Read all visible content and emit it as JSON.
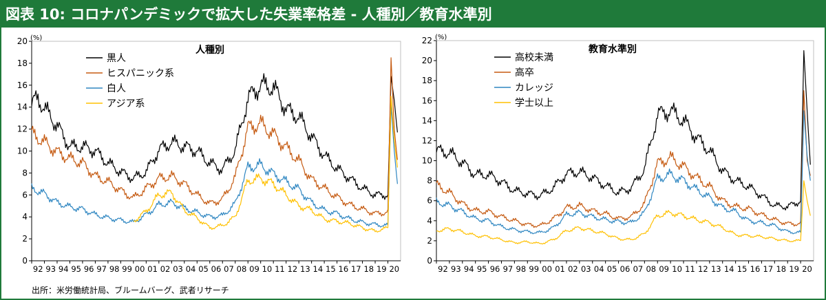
{
  "title": "図表 10: コロナパンデミックで拡大した失業率格差 - 人種別／教育水準別",
  "source": "出所：米労働統計局、ブルームバーグ、武者リサーチ",
  "chart_data": [
    {
      "type": "line",
      "title": "人種別",
      "unit": "(%)",
      "ylim": [
        0,
        20
      ],
      "yticks": [
        0,
        2,
        4,
        6,
        8,
        10,
        12,
        14,
        16,
        18,
        20
      ],
      "xlabels": [
        "92",
        "93",
        "94",
        "95",
        "96",
        "97",
        "98",
        "99",
        "00",
        "01",
        "02",
        "03",
        "04",
        "05",
        "06",
        "07",
        "08",
        "09",
        "10",
        "11",
        "12",
        "13",
        "14",
        "15",
        "16",
        "17",
        "18",
        "19",
        "20"
      ],
      "legend_position": "top-left",
      "x_start_year": 1992,
      "series": [
        {
          "name": "黒人",
          "color": "#000000",
          "anchors": [
            [
              1992.0,
              14.3
            ],
            [
              1992.5,
              14.8
            ],
            [
              1993.0,
              13.9
            ],
            [
              1994.0,
              12.3
            ],
            [
              1995.0,
              10.4
            ],
            [
              1996.0,
              10.4
            ],
            [
              1997.0,
              10.0
            ],
            [
              1998.0,
              8.9
            ],
            [
              1999.0,
              8.1
            ],
            [
              2000.0,
              7.5
            ],
            [
              2001.0,
              8.1
            ],
            [
              2002.0,
              10.1
            ],
            [
              2003.0,
              10.8
            ],
            [
              2004.0,
              10.4
            ],
            [
              2005.0,
              10.0
            ],
            [
              2006.0,
              8.9
            ],
            [
              2007.0,
              8.3
            ],
            [
              2008.0,
              10.1
            ],
            [
              2009.0,
              14.8
            ],
            [
              2010.0,
              16.0
            ],
            [
              2011.0,
              15.8
            ],
            [
              2012.0,
              13.8
            ],
            [
              2013.0,
              13.1
            ],
            [
              2014.0,
              11.3
            ],
            [
              2015.0,
              9.6
            ],
            [
              2016.0,
              8.4
            ],
            [
              2017.0,
              7.5
            ],
            [
              2018.0,
              6.6
            ],
            [
              2019.0,
              6.0
            ],
            [
              2020.0,
              6.0
            ],
            [
              2020.25,
              16.8
            ],
            [
              2020.5,
              14.6
            ],
            [
              2020.75,
              11.7
            ]
          ]
        },
        {
          "name": "ヒスパニック系",
          "color": "#c55a11",
          "anchors": [
            [
              1992.0,
              11.6
            ],
            [
              1993.0,
              10.8
            ],
            [
              1994.0,
              9.9
            ],
            [
              1995.0,
              9.3
            ],
            [
              1996.0,
              8.9
            ],
            [
              1997.0,
              7.7
            ],
            [
              1998.0,
              7.2
            ],
            [
              1999.0,
              6.4
            ],
            [
              2000.0,
              5.7
            ],
            [
              2001.0,
              6.6
            ],
            [
              2002.0,
              7.5
            ],
            [
              2003.0,
              7.7
            ],
            [
              2004.0,
              7.0
            ],
            [
              2005.0,
              6.0
            ],
            [
              2006.0,
              5.2
            ],
            [
              2007.0,
              5.6
            ],
            [
              2008.0,
              7.6
            ],
            [
              2009.0,
              12.1
            ],
            [
              2010.0,
              12.5
            ],
            [
              2011.0,
              11.5
            ],
            [
              2012.0,
              10.3
            ],
            [
              2013.0,
              9.1
            ],
            [
              2014.0,
              7.4
            ],
            [
              2015.0,
              6.6
            ],
            [
              2016.0,
              5.8
            ],
            [
              2017.0,
              5.1
            ],
            [
              2018.0,
              4.7
            ],
            [
              2019.0,
              4.3
            ],
            [
              2020.0,
              4.4
            ],
            [
              2020.25,
              18.5
            ],
            [
              2020.5,
              12.0
            ],
            [
              2020.75,
              9.2
            ]
          ]
        },
        {
          "name": "白人",
          "color": "#2e86c1",
          "anchors": [
            [
              1992.0,
              6.6
            ],
            [
              1993.0,
              6.1
            ],
            [
              1994.0,
              5.3
            ],
            [
              1995.0,
              4.9
            ],
            [
              1996.0,
              4.7
            ],
            [
              1997.0,
              4.2
            ],
            [
              1998.0,
              3.9
            ],
            [
              1999.0,
              3.7
            ],
            [
              2000.0,
              3.5
            ],
            [
              2001.0,
              4.2
            ],
            [
              2002.0,
              5.1
            ],
            [
              2003.0,
              5.3
            ],
            [
              2004.0,
              4.8
            ],
            [
              2005.0,
              4.4
            ],
            [
              2006.0,
              4.0
            ],
            [
              2007.0,
              4.1
            ],
            [
              2008.0,
              5.2
            ],
            [
              2009.0,
              8.5
            ],
            [
              2010.0,
              8.7
            ],
            [
              2011.0,
              7.9
            ],
            [
              2012.0,
              7.2
            ],
            [
              2013.0,
              6.5
            ],
            [
              2014.0,
              5.3
            ],
            [
              2015.0,
              4.6
            ],
            [
              2016.0,
              4.3
            ],
            [
              2017.0,
              3.8
            ],
            [
              2018.0,
              3.5
            ],
            [
              2019.0,
              3.3
            ],
            [
              2020.0,
              3.2
            ],
            [
              2020.25,
              14.2
            ],
            [
              2020.5,
              10.0
            ],
            [
              2020.75,
              7.0
            ]
          ]
        },
        {
          "name": "アジア系",
          "color": "#ffc000",
          "anchors": [
            [
              2000.0,
              3.6
            ],
            [
              2001.0,
              4.5
            ],
            [
              2002.0,
              6.0
            ],
            [
              2003.0,
              6.2
            ],
            [
              2004.0,
              4.6
            ],
            [
              2005.0,
              3.9
            ],
            [
              2006.0,
              3.0
            ],
            [
              2007.0,
              3.2
            ],
            [
              2008.0,
              4.0
            ],
            [
              2009.0,
              7.3
            ],
            [
              2010.0,
              7.5
            ],
            [
              2011.0,
              7.0
            ],
            [
              2012.0,
              6.0
            ],
            [
              2013.0,
              5.0
            ],
            [
              2014.0,
              4.6
            ],
            [
              2015.0,
              3.8
            ],
            [
              2016.0,
              3.6
            ],
            [
              2017.0,
              3.4
            ],
            [
              2018.0,
              3.0
            ],
            [
              2019.0,
              2.7
            ],
            [
              2020.0,
              3.0
            ],
            [
              2020.25,
              15.0
            ],
            [
              2020.5,
              11.0
            ],
            [
              2020.75,
              8.5
            ]
          ]
        }
      ]
    },
    {
      "type": "line",
      "title": "教育水準別",
      "unit": "(%)",
      "ylim": [
        0,
        22
      ],
      "yticks": [
        0,
        2,
        4,
        6,
        8,
        10,
        12,
        14,
        16,
        18,
        20,
        22
      ],
      "xlabels": [
        "92",
        "93",
        "94",
        "95",
        "96",
        "97",
        "98",
        "99",
        "00",
        "01",
        "02",
        "03",
        "04",
        "05",
        "06",
        "07",
        "08",
        "09",
        "10",
        "11",
        "12",
        "13",
        "14",
        "15",
        "16",
        "17",
        "18",
        "19",
        "20"
      ],
      "legend_position": "top-left",
      "x_start_year": 1992,
      "series": [
        {
          "name": "高校未満",
          "color": "#000000",
          "anchors": [
            [
              1992.0,
              11.0
            ],
            [
              1993.0,
              10.8
            ],
            [
              1994.0,
              9.8
            ],
            [
              1995.0,
              8.6
            ],
            [
              1996.0,
              8.6
            ],
            [
              1997.0,
              7.9
            ],
            [
              1998.0,
              7.0
            ],
            [
              1999.0,
              6.7
            ],
            [
              2000.0,
              6.5
            ],
            [
              2001.0,
              7.3
            ],
            [
              2002.0,
              8.7
            ],
            [
              2003.0,
              8.9
            ],
            [
              2004.0,
              8.3
            ],
            [
              2005.0,
              7.5
            ],
            [
              2006.0,
              6.8
            ],
            [
              2007.0,
              7.3
            ],
            [
              2008.0,
              9.2
            ],
            [
              2009.0,
              14.6
            ],
            [
              2010.0,
              15.0
            ],
            [
              2011.0,
              14.0
            ],
            [
              2012.0,
              12.3
            ],
            [
              2013.0,
              11.0
            ],
            [
              2014.0,
              9.0
            ],
            [
              2015.0,
              8.0
            ],
            [
              2016.0,
              7.4
            ],
            [
              2017.0,
              6.5
            ],
            [
              2018.0,
              5.5
            ],
            [
              2019.0,
              5.4
            ],
            [
              2020.0,
              6.0
            ],
            [
              2020.25,
              21.0
            ],
            [
              2020.5,
              15.0
            ],
            [
              2020.75,
              9.6
            ]
          ]
        },
        {
          "name": "高卒",
          "color": "#c55a11",
          "anchors": [
            [
              1992.0,
              7.6
            ],
            [
              1993.0,
              6.8
            ],
            [
              1994.0,
              5.7
            ],
            [
              1995.0,
              5.0
            ],
            [
              1996.0,
              4.9
            ],
            [
              1997.0,
              4.4
            ],
            [
              1998.0,
              4.0
            ],
            [
              1999.0,
              3.6
            ],
            [
              2000.0,
              3.5
            ],
            [
              2001.0,
              4.2
            ],
            [
              2002.0,
              5.3
            ],
            [
              2003.0,
              5.5
            ],
            [
              2004.0,
              5.0
            ],
            [
              2005.0,
              4.7
            ],
            [
              2006.0,
              4.2
            ],
            [
              2007.0,
              4.4
            ],
            [
              2008.0,
              5.7
            ],
            [
              2009.0,
              9.7
            ],
            [
              2010.0,
              10.3
            ],
            [
              2011.0,
              9.4
            ],
            [
              2012.0,
              8.3
            ],
            [
              2013.0,
              7.4
            ],
            [
              2014.0,
              6.0
            ],
            [
              2015.0,
              5.4
            ],
            [
              2016.0,
              5.2
            ],
            [
              2017.0,
              4.6
            ],
            [
              2018.0,
              4.1
            ],
            [
              2019.0,
              3.7
            ],
            [
              2020.0,
              3.7
            ],
            [
              2020.25,
              17.0
            ],
            [
              2020.5,
              10.0
            ],
            [
              2020.75,
              8.5
            ]
          ]
        },
        {
          "name": "カレッジ",
          "color": "#2e86c1",
          "anchors": [
            [
              1992.0,
              5.9
            ],
            [
              1993.0,
              5.5
            ],
            [
              1994.0,
              4.9
            ],
            [
              1995.0,
              4.2
            ],
            [
              1996.0,
              4.0
            ],
            [
              1997.0,
              3.4
            ],
            [
              1998.0,
              3.1
            ],
            [
              1999.0,
              2.9
            ],
            [
              2000.0,
              2.8
            ],
            [
              2001.0,
              3.3
            ],
            [
              2002.0,
              4.6
            ],
            [
              2003.0,
              4.8
            ],
            [
              2004.0,
              4.4
            ],
            [
              2005.0,
              4.1
            ],
            [
              2006.0,
              3.9
            ],
            [
              2007.0,
              3.8
            ],
            [
              2008.0,
              4.8
            ],
            [
              2009.0,
              8.2
            ],
            [
              2010.0,
              8.6
            ],
            [
              2011.0,
              8.0
            ],
            [
              2012.0,
              7.1
            ],
            [
              2013.0,
              6.3
            ],
            [
              2014.0,
              5.3
            ],
            [
              2015.0,
              4.9
            ],
            [
              2016.0,
              4.0
            ],
            [
              2017.0,
              3.8
            ],
            [
              2018.0,
              3.5
            ],
            [
              2019.0,
              2.9
            ],
            [
              2020.0,
              2.8
            ],
            [
              2020.25,
              15.0
            ],
            [
              2020.5,
              10.5
            ],
            [
              2020.75,
              8.0
            ]
          ]
        },
        {
          "name": "学士以上",
          "color": "#ffc000",
          "anchors": [
            [
              1992.0,
              3.0
            ],
            [
              1993.0,
              3.2
            ],
            [
              1994.0,
              2.9
            ],
            [
              1995.0,
              2.5
            ],
            [
              1996.0,
              2.4
            ],
            [
              1997.0,
              2.1
            ],
            [
              1998.0,
              1.8
            ],
            [
              1999.0,
              1.9
            ],
            [
              2000.0,
              1.7
            ],
            [
              2001.0,
              2.1
            ],
            [
              2002.0,
              3.0
            ],
            [
              2003.0,
              3.3
            ],
            [
              2004.0,
              3.0
            ],
            [
              2005.0,
              2.7
            ],
            [
              2006.0,
              2.2
            ],
            [
              2007.0,
              2.1
            ],
            [
              2008.0,
              2.7
            ],
            [
              2009.0,
              4.5
            ],
            [
              2010.0,
              4.8
            ],
            [
              2011.0,
              4.5
            ],
            [
              2012.0,
              4.1
            ],
            [
              2013.0,
              3.8
            ],
            [
              2014.0,
              3.3
            ],
            [
              2015.0,
              2.6
            ],
            [
              2016.0,
              2.5
            ],
            [
              2017.0,
              2.4
            ],
            [
              2018.0,
              2.2
            ],
            [
              2019.0,
              2.0
            ],
            [
              2020.0,
              2.0
            ],
            [
              2020.25,
              8.0
            ],
            [
              2020.5,
              6.0
            ],
            [
              2020.75,
              4.5
            ]
          ]
        }
      ]
    }
  ]
}
